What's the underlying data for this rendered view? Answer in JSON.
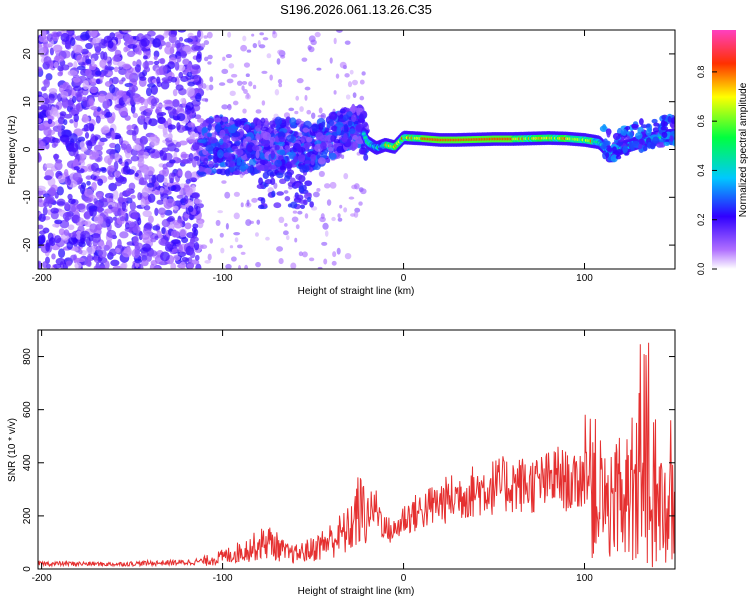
{
  "title": "S196.2026.061.13.26.C35",
  "chart_data": [
    {
      "type": "heatmap",
      "xlabel": "Height of straight line (km)",
      "ylabel": "Frequency (Hz)",
      "xlim": [
        -202,
        150
      ],
      "ylim": [
        -25,
        25
      ],
      "xticks": [
        -200,
        -100,
        0,
        100
      ],
      "yticks": [
        -20,
        -10,
        0,
        10,
        20
      ],
      "ridge": [
        {
          "x": -112,
          "f": 0.3
        },
        {
          "x": -100,
          "f": 1.0
        },
        {
          "x": -90,
          "f": 0.5
        },
        {
          "x": -80,
          "f": 0.8
        },
        {
          "x": -70,
          "f": 1.0
        },
        {
          "x": -60,
          "f": 1.5
        },
        {
          "x": -50,
          "f": 0.5
        },
        {
          "x": -40,
          "f": 2.5
        },
        {
          "x": -30,
          "f": 4.5
        },
        {
          "x": -24,
          "f": 5.0
        },
        {
          "x": -20,
          "f": 1.5
        },
        {
          "x": -15,
          "f": 0.3
        },
        {
          "x": -10,
          "f": 1.0
        },
        {
          "x": -5,
          "f": 0.5
        },
        {
          "x": 0,
          "f": 2.5
        },
        {
          "x": 10,
          "f": 2.3
        },
        {
          "x": 20,
          "f": 2.0
        },
        {
          "x": 30,
          "f": 2.0
        },
        {
          "x": 40,
          "f": 2.1
        },
        {
          "x": 50,
          "f": 2.2
        },
        {
          "x": 60,
          "f": 2.2
        },
        {
          "x": 70,
          "f": 2.3
        },
        {
          "x": 80,
          "f": 2.4
        },
        {
          "x": 90,
          "f": 2.3
        },
        {
          "x": 100,
          "f": 2.0
        },
        {
          "x": 108,
          "f": 1.5
        },
        {
          "x": 115,
          "f": -1.0
        },
        {
          "x": 120,
          "f": 0.3
        },
        {
          "x": 130,
          "f": 1.5
        },
        {
          "x": 140,
          "f": 2.5
        },
        {
          "x": 150,
          "f": 3.0
        }
      ],
      "colorbar": {
        "label": "Normalized spectral amplitude",
        "range": [
          0,
          0.97
        ],
        "ticks": [
          0.0,
          0.2,
          0.4,
          0.6,
          0.8
        ],
        "tick_labels": [
          "0.0",
          "0.2",
          "0.4",
          "0.6",
          "0.8"
        ]
      }
    },
    {
      "type": "line",
      "xlabel": "Height of straight line (km)",
      "ylabel": "SNR (10 * v/v)",
      "xlim": [
        -202,
        150
      ],
      "ylim": [
        0,
        900
      ],
      "xticks": [
        -200,
        -100,
        0,
        100
      ],
      "yticks": [
        0,
        200,
        400,
        600,
        800
      ],
      "color": "#e53030",
      "series": [
        {
          "name": "SNR",
          "x": [
            -202,
            -180,
            -160,
            -140,
            -120,
            -110,
            -100,
            -90,
            -80,
            -75,
            -70,
            -65,
            -60,
            -50,
            -40,
            -30,
            -25,
            -20,
            -15,
            -10,
            -5,
            0,
            10,
            20,
            30,
            40,
            50,
            60,
            70,
            80,
            85,
            90,
            95,
            100,
            110,
            115,
            120,
            125,
            130,
            135,
            140,
            145,
            150
          ],
          "values": [
            20,
            20,
            18,
            22,
            25,
            30,
            45,
            65,
            90,
            105,
            85,
            60,
            55,
            75,
            110,
            145,
            220,
            210,
            230,
            150,
            140,
            190,
            220,
            250,
            275,
            295,
            310,
            320,
            315,
            330,
            350,
            330,
            315,
            360,
            260,
            220,
            330,
            290,
            340,
            300,
            310,
            200,
            240
          ]
        }
      ]
    }
  ]
}
